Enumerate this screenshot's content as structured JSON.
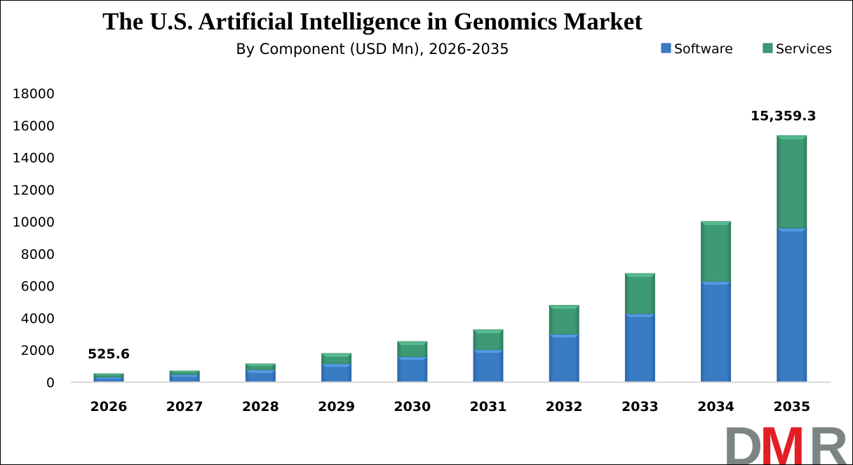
{
  "chart_data": {
    "type": "bar",
    "stacked": true,
    "title": "The U.S. Artificial Intelligence in Genomics Market",
    "subtitle": "By Component (USD Mn), 2026-2035",
    "categories": [
      "2026",
      "2027",
      "2028",
      "2029",
      "2030",
      "2031",
      "2032",
      "2033",
      "2034",
      "2035"
    ],
    "series": [
      {
        "name": "Software",
        "color": "#3a7cc4",
        "values": [
          320,
          490,
          790,
          1170,
          1600,
          2040,
          3000,
          4280,
          6290,
          9610
        ]
      },
      {
        "name": "Services",
        "color": "#3d9a74",
        "values": [
          205.6,
          210,
          350,
          620,
          930,
          1230,
          1790,
          2490,
          3720,
          5749.3
        ]
      }
    ],
    "data_labels": [
      {
        "category": "2026",
        "text": "525.6"
      },
      {
        "category": "2035",
        "text": "15,359.3"
      }
    ],
    "yticks": [
      "0",
      "2000",
      "4000",
      "6000",
      "8000",
      "10000",
      "12000",
      "14000",
      "16000",
      "18000"
    ],
    "ylim": [
      0,
      18000
    ],
    "grid": false,
    "legend_position": "top-right",
    "xlabel": "",
    "ylabel": ""
  },
  "logo": {
    "text": "DMR",
    "colors": [
      "#7c8584",
      "#e31e24",
      "#7c8584"
    ]
  }
}
